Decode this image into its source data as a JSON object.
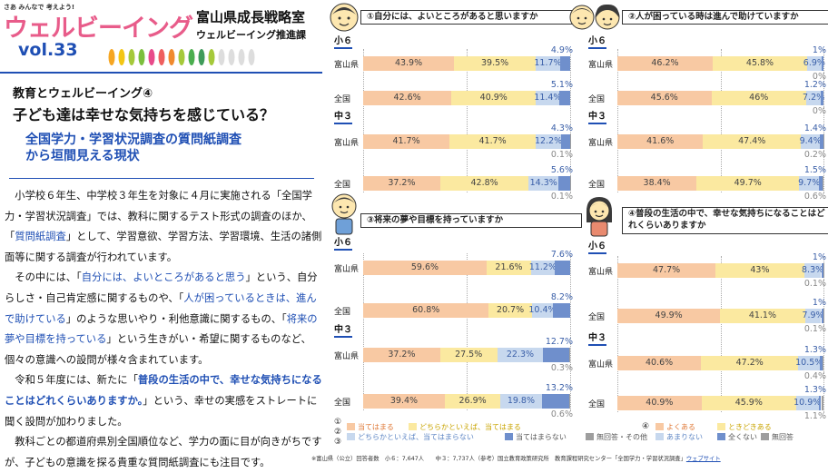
{
  "header": {
    "tagline": "さあ みんなで 考えよう!",
    "brand": "ウェルビーイング",
    "vol": "vol.33",
    "org_line1": "富山県成長戦略室",
    "org_line2": "ウェルビーイング推進課"
  },
  "article": {
    "section": "教育とウェルビーイング④",
    "headline": "子ども達は幸せな気持ちを感じている？",
    "subhead_1": "全国学力・学習状況調査の質問紙調査",
    "subhead_2": "から垣間見える現状",
    "paragraphs": [
      [
        {
          "t": "小学校６年生、中学校３年生を対象に４月に実施される「全国学力・学習状況調査」では、教科に関するテスト形式の調査のほか、「"
        },
        {
          "t": "質問紙調査",
          "c": "hl"
        },
        {
          "t": "」として、学習意欲、学習方法、学習環境、生活の諸側面等に関する調査が行われています。"
        }
      ],
      [
        {
          "t": "その中には、「"
        },
        {
          "t": "自分には、よいところがあると思う",
          "c": "hl"
        },
        {
          "t": "」という、自分らしさ・自己肯定感に関するものや、「"
        },
        {
          "t": "人が困っているときは、進んで助けている",
          "c": "hl"
        },
        {
          "t": "」のような思いやり・利他意識に関するもの、「"
        },
        {
          "t": "将来の夢や目標を持っている",
          "c": "hl"
        },
        {
          "t": "」という生きがい・希望に関するものなど、個々の意識への設問が様々含まれています。"
        }
      ],
      [
        {
          "t": "令和５年度には、新たに「"
        },
        {
          "t": "普段の生活の中で、幸せな気持ちになることはどれくらいありますか。",
          "c": "hlb"
        },
        {
          "t": "」という、幸せの実感をストレートに聞く設問が加わりました。"
        }
      ],
      [
        {
          "t": "教科ごとの都道府県別全国順位など、学力の面に目が向きがちですが、子どもの意識を探る貴重な質問紙調査にも注目です。"
        }
      ]
    ]
  },
  "colors": {
    "c1": "#f8c9a3",
    "c2": "#fbe9a0",
    "c3": "#c7d8ee",
    "c4": "#6f8fcc",
    "c5": "#9e9e9e",
    "accent": "#1f4fb4"
  },
  "legend": {
    "markers": [
      "①",
      "②",
      "③",
      "④"
    ],
    "set_a": [
      "当てはまる",
      "どちらかといえば、当てはまる",
      "どちらかといえば、当てはまらない",
      "当てはまらない",
      "無回答・その他"
    ],
    "set_b": [
      "よくある",
      "ときどきある",
      "あまりない",
      "全くない",
      "無回答"
    ]
  },
  "footnote": {
    "text": "※富山県（公立）回答者数　小６：7,647人　　中３：7,737人（参考）国立教育政策研究所　教育課程研究センター「全国学力・学習状況調査」",
    "link": "ウェブサイト"
  },
  "chart_data": [
    {
      "type": "bar",
      "title": "①自分には、よいところがあると思いますか",
      "groups": [
        "小６",
        "中３"
      ],
      "rows": [
        {
          "group": "小６",
          "label": "富山県",
          "values": [
            43.9,
            39.5,
            11.7,
            4.9,
            0
          ]
        },
        {
          "group": "小６",
          "label": "全国",
          "values": [
            42.6,
            40.9,
            11.4,
            5.1,
            0
          ]
        },
        {
          "group": "中３",
          "label": "富山県",
          "values": [
            41.7,
            41.7,
            12.2,
            4.3,
            0.1
          ]
        },
        {
          "group": "中３",
          "label": "全国",
          "values": [
            37.2,
            42.8,
            14.3,
            5.6,
            0.1
          ]
        }
      ]
    },
    {
      "type": "bar",
      "title": "②人が困っている時は進んで助けていますか",
      "groups": [
        "小６",
        "中３"
      ],
      "rows": [
        {
          "group": "小６",
          "label": "富山県",
          "values": [
            46.2,
            45.8,
            6.9,
            1,
            0
          ]
        },
        {
          "group": "小６",
          "label": "全国",
          "values": [
            45.6,
            46,
            7.2,
            1.2,
            0
          ]
        },
        {
          "group": "中３",
          "label": "富山県",
          "values": [
            41.6,
            47.4,
            9.4,
            1.4,
            0.2
          ]
        },
        {
          "group": "中３",
          "label": "全国",
          "values": [
            38.4,
            49.7,
            9.7,
            1.5,
            0.6
          ]
        }
      ]
    },
    {
      "type": "bar",
      "title": "③将来の夢や目標を持っていますか",
      "groups": [
        "小６",
        "中３"
      ],
      "rows": [
        {
          "group": "小６",
          "label": "富山県",
          "values": [
            59.6,
            21.6,
            11.2,
            7.6,
            0
          ]
        },
        {
          "group": "小６",
          "label": "全国",
          "values": [
            60.8,
            20.7,
            10.4,
            8.2,
            0
          ]
        },
        {
          "group": "中３",
          "label": "富山県",
          "values": [
            37.2,
            27.5,
            22.3,
            12.7,
            0.3
          ]
        },
        {
          "group": "中３",
          "label": "全国",
          "values": [
            39.4,
            26.9,
            19.8,
            13.2,
            0.6
          ]
        }
      ]
    },
    {
      "type": "bar",
      "title": "④普段の生活の中で、幸せな気持ちになることはどれくらいありますか",
      "groups": [
        "小６",
        "中３"
      ],
      "rows": [
        {
          "group": "小６",
          "label": "富山県",
          "values": [
            47.7,
            43,
            8.3,
            1,
            0.1
          ]
        },
        {
          "group": "小６",
          "label": "全国",
          "values": [
            49.9,
            41.1,
            7.9,
            1,
            0.1
          ]
        },
        {
          "group": "中３",
          "label": "富山県",
          "values": [
            40.6,
            47.2,
            10.5,
            1.3,
            0.4
          ]
        },
        {
          "group": "中３",
          "label": "全国",
          "values": [
            40.9,
            45.9,
            10.9,
            1.3,
            1.1
          ]
        }
      ]
    }
  ]
}
